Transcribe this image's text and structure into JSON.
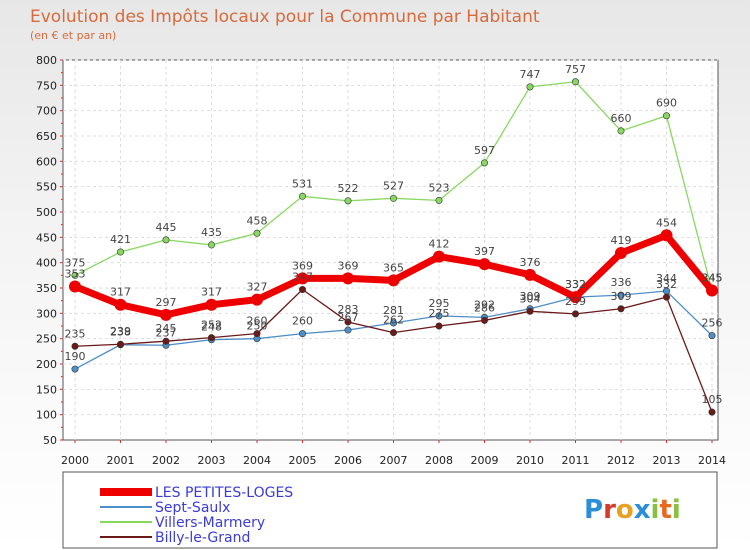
{
  "chart_data": {
    "type": "line",
    "title": "Evolution des Impôts locaux pour la Commune par Habitant",
    "subtitle": "(en € et par an)",
    "x": [
      "2000",
      "2001",
      "2002",
      "2003",
      "2004",
      "2005",
      "2006",
      "2007",
      "2008",
      "2009",
      "2010",
      "2011",
      "2012",
      "2013",
      "2014"
    ],
    "ylim": [
      50,
      800
    ],
    "yticks": [
      50,
      100,
      150,
      200,
      250,
      300,
      350,
      400,
      450,
      500,
      550,
      600,
      650,
      700,
      750,
      800
    ],
    "grid": true,
    "legend_position": "bottom-left",
    "series": [
      {
        "name": "LES PETITES-LOGES",
        "color": "#ee0000",
        "values": [
          353,
          317,
          297,
          317,
          327,
          369,
          369,
          365,
          412,
          397,
          376,
          332,
          419,
          454,
          345
        ]
      },
      {
        "name": "Sept-Saulx",
        "color": "#4f8fc8",
        "values": [
          190,
          238,
          237,
          248,
          250,
          260,
          267,
          281,
          295,
          292,
          309,
          332,
          336,
          344,
          256
        ]
      },
      {
        "name": "Villers-Marmery",
        "color": "#88d860",
        "values": [
          375,
          421,
          445,
          435,
          458,
          531,
          522,
          527,
          523,
          597,
          747,
          757,
          660,
          690,
          345
        ]
      },
      {
        "name": "Billy-le-Grand",
        "color": "#6b1a1a",
        "values": [
          235,
          239,
          245,
          252,
          260,
          347,
          283,
          262,
          275,
          286,
          304,
          299,
          309,
          332,
          105
        ]
      }
    ]
  },
  "branding": {
    "logo_text": "Proxiti"
  }
}
